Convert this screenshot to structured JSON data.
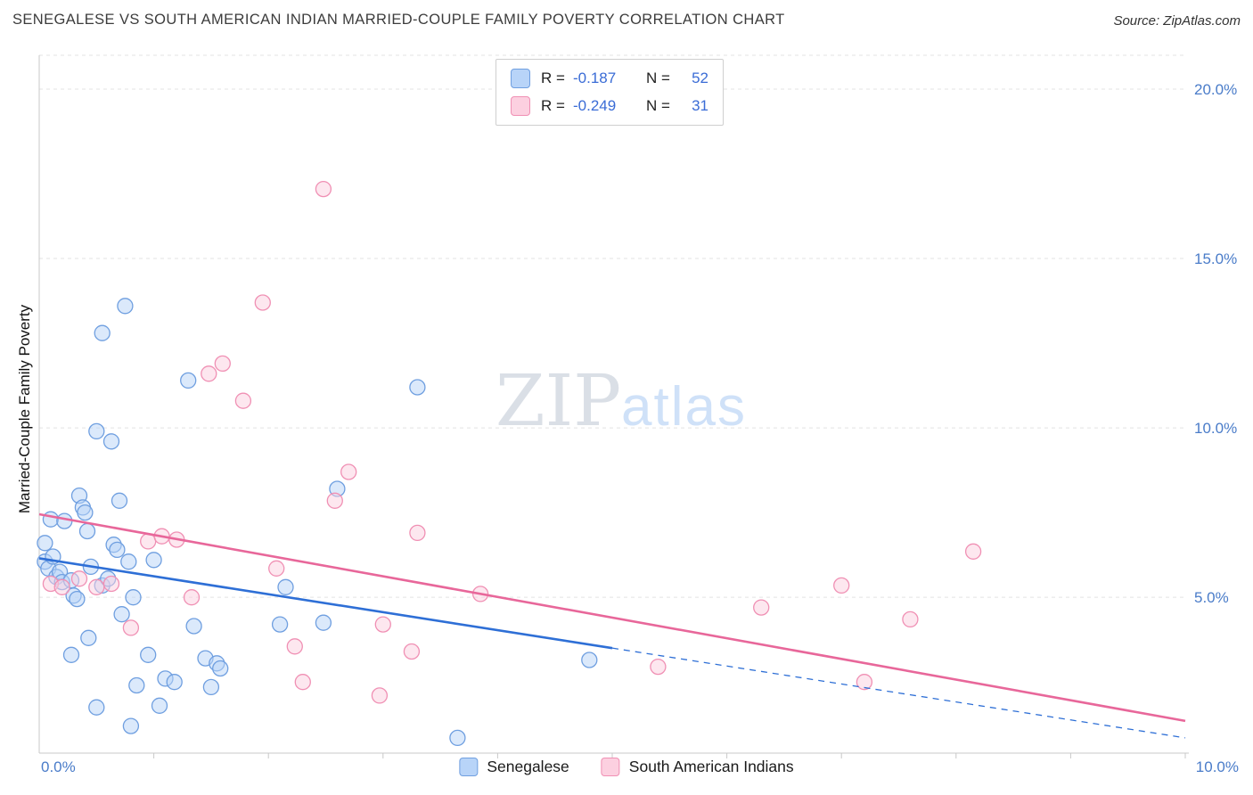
{
  "header": {
    "title": "SENEGALESE VS SOUTH AMERICAN INDIAN MARRIED-COUPLE FAMILY POVERTY CORRELATION CHART",
    "source": "Source: ZipAtlas.com"
  },
  "watermark": {
    "part1": "ZIP",
    "part2": "atlas"
  },
  "colors": {
    "tick_label_blue": "#4a7cc9",
    "legend_value_blue": "#3a6cd6",
    "senegalese_fill": "#b8d4f8",
    "senegalese_stroke": "#6f9fe0",
    "senegalese_trend": "#2e6fd6",
    "south_american_fill": "#fcd0e0",
    "south_american_stroke": "#f090b4",
    "south_american_trend": "#e8679a"
  },
  "chart_data": {
    "type": "scatter",
    "title": "Senegalese vs South American Indian Married-Couple Family Poverty",
    "ylabel": "Married-Couple Family Poverty",
    "xlabel": "",
    "xlim": [
      0,
      10
    ],
    "ylim": [
      0.4,
      21
    ],
    "grid": true,
    "legend_position": "top-center",
    "xtick_labels": [
      "0.0%",
      "10.0%"
    ],
    "x_minor_ticks": [
      1,
      2,
      3,
      4,
      5,
      6,
      7,
      8,
      9,
      10
    ],
    "y_ticks": [
      {
        "value": 5,
        "label": "5.0%"
      },
      {
        "value": 10,
        "label": "10.0%"
      },
      {
        "value": 15,
        "label": "15.0%"
      },
      {
        "value": 20,
        "label": "20.0%"
      }
    ],
    "series": [
      {
        "name": "Senegalese",
        "r_label": "R =",
        "r_display": "-0.187",
        "n_label": "N =",
        "n_display": "52",
        "r": -0.187,
        "n": 52,
        "fill": "#b8d4f8",
        "stroke": "#6f9fe0",
        "trend_color": "#2e6fd6",
        "trend": {
          "solid": [
            [
              0,
              6.15
            ],
            [
              5.0,
              3.5
            ]
          ],
          "dashed": [
            [
              5.0,
              3.5
            ],
            [
              10.0,
              0.85
            ]
          ]
        },
        "points": [
          [
            0.05,
            6.6
          ],
          [
            0.05,
            6.05
          ],
          [
            0.08,
            5.85
          ],
          [
            0.1,
            7.3
          ],
          [
            0.12,
            6.2
          ],
          [
            0.15,
            5.6
          ],
          [
            0.18,
            5.75
          ],
          [
            0.2,
            5.45
          ],
          [
            0.22,
            7.25
          ],
          [
            0.28,
            5.5
          ],
          [
            0.3,
            5.05
          ],
          [
            0.33,
            4.95
          ],
          [
            0.28,
            3.3
          ],
          [
            0.35,
            8.0
          ],
          [
            0.38,
            7.65
          ],
          [
            0.4,
            7.5
          ],
          [
            0.42,
            6.95
          ],
          [
            0.45,
            5.9
          ],
          [
            0.43,
            3.8
          ],
          [
            0.5,
            9.9
          ],
          [
            0.5,
            1.75
          ],
          [
            0.55,
            12.8
          ],
          [
            0.55,
            5.35
          ],
          [
            0.6,
            5.55
          ],
          [
            0.63,
            9.6
          ],
          [
            0.65,
            6.55
          ],
          [
            0.68,
            6.4
          ],
          [
            0.7,
            7.85
          ],
          [
            0.72,
            4.5
          ],
          [
            0.75,
            13.6
          ],
          [
            0.78,
            6.05
          ],
          [
            0.8,
            1.2
          ],
          [
            0.82,
            5.0
          ],
          [
            0.85,
            2.4
          ],
          [
            0.95,
            3.3
          ],
          [
            1.0,
            6.1
          ],
          [
            1.05,
            1.8
          ],
          [
            1.1,
            2.6
          ],
          [
            1.18,
            2.5
          ],
          [
            1.3,
            11.4
          ],
          [
            1.35,
            4.15
          ],
          [
            1.45,
            3.2
          ],
          [
            1.5,
            2.35
          ],
          [
            1.55,
            3.05
          ],
          [
            1.58,
            2.9
          ],
          [
            2.1,
            4.2
          ],
          [
            2.15,
            5.3
          ],
          [
            2.48,
            4.25
          ],
          [
            2.6,
            8.2
          ],
          [
            3.3,
            11.2
          ],
          [
            3.65,
            0.85
          ],
          [
            4.8,
            3.15
          ]
        ]
      },
      {
        "name": "South American Indians",
        "r_label": "R =",
        "r_display": "-0.249",
        "n_label": "N =",
        "n_display": "31",
        "r": -0.249,
        "n": 31,
        "fill": "#fcd0e0",
        "stroke": "#f090b4",
        "trend_color": "#e8679a",
        "trend": {
          "solid": [
            [
              0,
              7.45
            ],
            [
              10.0,
              1.35
            ]
          ]
        },
        "points": [
          [
            0.1,
            5.4
          ],
          [
            0.2,
            5.3
          ],
          [
            0.35,
            5.55
          ],
          [
            0.5,
            5.3
          ],
          [
            0.63,
            5.4
          ],
          [
            0.8,
            4.1
          ],
          [
            0.95,
            6.65
          ],
          [
            1.07,
            6.8
          ],
          [
            1.2,
            6.7
          ],
          [
            1.33,
            5.0
          ],
          [
            1.48,
            11.6
          ],
          [
            1.6,
            11.9
          ],
          [
            1.78,
            10.8
          ],
          [
            1.95,
            13.7
          ],
          [
            2.07,
            5.85
          ],
          [
            2.23,
            3.55
          ],
          [
            2.3,
            2.5
          ],
          [
            2.48,
            17.05
          ],
          [
            2.58,
            7.85
          ],
          [
            2.7,
            8.7
          ],
          [
            2.97,
            2.1
          ],
          [
            3.0,
            4.2
          ],
          [
            3.25,
            3.4
          ],
          [
            3.3,
            6.9
          ],
          [
            3.85,
            5.1
          ],
          [
            5.4,
            2.95
          ],
          [
            6.3,
            4.7
          ],
          [
            7.0,
            5.35
          ],
          [
            7.2,
            2.5
          ],
          [
            7.6,
            4.35
          ],
          [
            8.15,
            6.35
          ]
        ]
      }
    ]
  }
}
